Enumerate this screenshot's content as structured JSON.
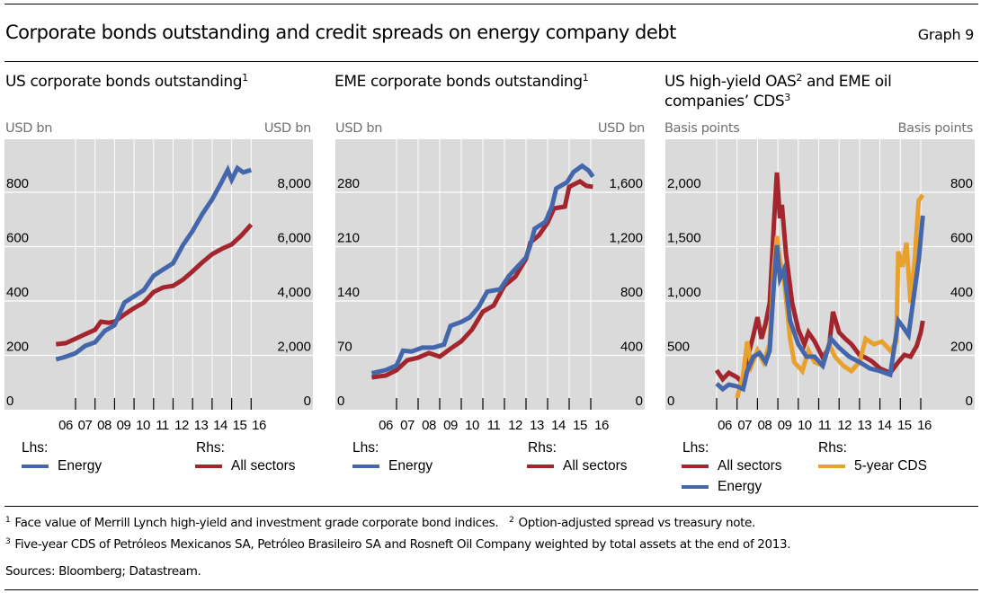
{
  "header": {
    "title": "Corporate bonds outstanding and credit spreads on energy company debt",
    "graph_number": "Graph 9"
  },
  "colors": {
    "energy": "#4466AA",
    "all_sectors": "#A3262F",
    "cds": "#E8A02E",
    "plot_bg": "#DADADA",
    "grid": "#FFFFFF"
  },
  "panels": [
    {
      "title": "US corporate bonds outstanding",
      "title_sup": "1",
      "unit_left": "USD bn",
      "unit_right": "USD bn",
      "legend": {
        "lhs_label": "Lhs:",
        "rhs_label": "Rhs:",
        "lhs_items": [
          "Energy"
        ],
        "rhs_items": [
          "All sectors"
        ]
      }
    },
    {
      "title": "EME corporate bonds outstanding",
      "title_sup": "1",
      "unit_left": "USD bn",
      "unit_right": "USD bn",
      "legend": {
        "lhs_label": "Lhs:",
        "rhs_label": "Rhs:",
        "lhs_items": [
          "Energy"
        ],
        "rhs_items": [
          "All sectors"
        ]
      }
    },
    {
      "title": "US high-yield OAS",
      "title_sup": "2",
      "title_cont": " and EME oil",
      "title_line2": "companies’ CDS",
      "title_line2_sup": "3",
      "unit_left": "Basis points",
      "unit_right": "Basis points",
      "legend": {
        "lhs_label": "Lhs:",
        "rhs_label": "Rhs:",
        "lhs_items": [
          "All sectors",
          "Energy"
        ],
        "rhs_items": [
          "5-year CDS"
        ]
      }
    }
  ],
  "footnotes": [
    {
      "mark": "1",
      "text": "Face value of Merrill Lynch high-yield and investment grade corporate bond indices."
    },
    {
      "mark": "2",
      "text": "Option-adjusted spread vs treasury note."
    },
    {
      "mark": "3",
      "text": "Five-year CDS of Petróleos Mexicanos SA, Petróleo Brasileiro SA and Rosneft Oil Company weighted by total assets at the end of 2013."
    }
  ],
  "sources": "Sources: Bloomberg; Datastream.",
  "chart_data": [
    {
      "type": "line",
      "title": "US corporate bonds outstanding",
      "xlabel": "",
      "x_tick_labels": [
        "06",
        "07",
        "08",
        "09",
        "10",
        "11",
        "12",
        "13",
        "14",
        "15",
        "16"
      ],
      "x_range": [
        2006.0,
        2016.0
      ],
      "ylabel_left": "USD bn",
      "ylabel_right": "USD bn",
      "yticks_left": [
        "0",
        "200",
        "400",
        "600",
        "800"
      ],
      "yticks_right": [
        "0",
        "2,000",
        "4,000",
        "6,000",
        "8,000"
      ],
      "ylim_left": [
        0,
        1000
      ],
      "ylim_right": [
        0,
        10000
      ],
      "grid": true,
      "legend_position": "bottom",
      "series": [
        {
          "name": "Energy",
          "axis": "lhs",
          "color_key": "energy",
          "x": [
            2006.0,
            2006.5,
            2007.0,
            2007.5,
            2008.0,
            2008.5,
            2009.0,
            2009.5,
            2010.0,
            2010.5,
            2011.0,
            2011.5,
            2012.0,
            2012.5,
            2013.0,
            2013.5,
            2014.0,
            2014.5,
            2014.8,
            2015.0,
            2015.3,
            2015.6,
            2016.0
          ],
          "values": [
            185,
            195,
            208,
            235,
            248,
            290,
            311,
            394,
            417,
            440,
            493,
            516,
            539,
            605,
            658,
            720,
            774,
            840,
            882,
            846,
            889,
            873,
            882
          ]
        },
        {
          "name": "All sectors",
          "axis": "rhs",
          "color_key": "all_sectors",
          "x": [
            2006.0,
            2006.5,
            2007.0,
            2007.5,
            2008.0,
            2008.3,
            2008.7,
            2009.0,
            2009.5,
            2010.0,
            2010.5,
            2011.0,
            2011.5,
            2012.0,
            2012.5,
            2013.0,
            2013.5,
            2014.0,
            2014.5,
            2015.0,
            2015.5,
            2016.0
          ],
          "values": [
            2410,
            2450,
            2610,
            2780,
            2940,
            3240,
            3200,
            3240,
            3500,
            3740,
            3940,
            4330,
            4500,
            4560,
            4780,
            5090,
            5420,
            5720,
            5920,
            6080,
            6410,
            6810
          ]
        }
      ]
    },
    {
      "type": "line",
      "title": "EME corporate bonds outstanding",
      "xlabel": "",
      "x_tick_labels": [
        "06",
        "07",
        "08",
        "09",
        "10",
        "11",
        "12",
        "13",
        "14",
        "15",
        "16"
      ],
      "x_range": [
        2005.85,
        2016.1
      ],
      "ylabel_left": "USD bn",
      "ylabel_right": "USD bn",
      "yticks_left": [
        "0",
        "70",
        "140",
        "210",
        "280"
      ],
      "yticks_right": [
        "0",
        "400",
        "800",
        "1,200",
        "1,600"
      ],
      "ylim_left": [
        0,
        350
      ],
      "ylim_right": [
        0,
        2000
      ],
      "grid": true,
      "legend_position": "bottom",
      "series": [
        {
          "name": "Energy",
          "axis": "lhs",
          "color_key": "energy",
          "x": [
            2005.85,
            2006.5,
            2007.0,
            2007.3,
            2007.7,
            2008.2,
            2008.7,
            2009.2,
            2009.5,
            2010.0,
            2010.4,
            2010.8,
            2011.2,
            2011.8,
            2012.2,
            2012.6,
            2013.0,
            2013.2,
            2013.4,
            2013.9,
            2014.2,
            2014.4,
            2014.9,
            2015.2,
            2015.6,
            2015.9,
            2016.1
          ],
          "values": [
            47,
            51,
            57,
            76,
            75,
            80,
            80,
            84,
            108,
            113,
            119,
            132,
            152,
            155,
            172,
            184,
            196,
            212,
            233,
            242,
            262,
            285,
            293,
            306,
            314,
            308,
            300
          ]
        },
        {
          "name": "All sectors",
          "axis": "rhs",
          "color_key": "all_sectors",
          "x": [
            2005.85,
            2006.5,
            2007.0,
            2007.5,
            2008.0,
            2008.5,
            2009.0,
            2009.5,
            2010.0,
            2010.5,
            2011.0,
            2011.5,
            2012.0,
            2012.5,
            2013.0,
            2013.2,
            2013.6,
            2014.0,
            2014.3,
            2014.8,
            2015.0,
            2015.5,
            2015.8,
            2016.1
          ],
          "values": [
            238,
            251,
            291,
            364,
            383,
            417,
            390,
            449,
            503,
            590,
            721,
            766,
            913,
            978,
            1110,
            1230,
            1284,
            1376,
            1481,
            1495,
            1640,
            1680,
            1647,
            1640
          ]
        }
      ]
    },
    {
      "type": "line",
      "title": "US high-yield OAS and EME oil companies' CDS",
      "xlabel": "",
      "x_tick_labels": [
        "06",
        "07",
        "08",
        "09",
        "10",
        "11",
        "12",
        "13",
        "14",
        "15",
        "16"
      ],
      "x_range": [
        2006.0,
        2016.1
      ],
      "ylabel_left": "Basis points",
      "ylabel_right": "Basis points",
      "yticks_left": [
        "0",
        "500",
        "1,000",
        "1,500",
        "2,000"
      ],
      "yticks_right": [
        "0",
        "200",
        "400",
        "600",
        "800"
      ],
      "ylim_left": [
        0,
        2500
      ],
      "ylim_right": [
        0,
        1000
      ],
      "grid": true,
      "legend_position": "bottom",
      "series": [
        {
          "name": "All sectors",
          "axis": "lhs",
          "color_key": "all_sectors",
          "x": [
            2006.0,
            2006.3,
            2006.6,
            2007.0,
            2007.3,
            2007.5,
            2007.8,
            2008.0,
            2008.2,
            2008.4,
            2008.6,
            2008.8,
            2008.95,
            2009.1,
            2009.2,
            2009.4,
            2009.7,
            2010.0,
            2010.3,
            2010.5,
            2010.8,
            2011.2,
            2011.5,
            2011.7,
            2012.0,
            2012.3,
            2012.6,
            2013.0,
            2013.3,
            2013.6,
            2014.0,
            2014.5,
            2014.9,
            2015.2,
            2015.5,
            2015.8,
            2016.0,
            2016.1
          ],
          "values": [
            364,
            281,
            339,
            298,
            240,
            463,
            686,
            851,
            653,
            793,
            983,
            1702,
            2182,
            1760,
            1884,
            1430,
            983,
            736,
            603,
            711,
            628,
            479,
            570,
            901,
            711,
            653,
            603,
            504,
            479,
            446,
            380,
            339,
            438,
            504,
            488,
            587,
            711,
            818
          ]
        },
        {
          "name": "Energy",
          "axis": "lhs",
          "color_key": "energy",
          "x": [
            2006.0,
            2006.3,
            2006.6,
            2007.0,
            2007.3,
            2007.5,
            2007.8,
            2008.1,
            2008.4,
            2008.6,
            2008.8,
            2008.95,
            2009.1,
            2009.3,
            2009.6,
            2010.0,
            2010.4,
            2010.8,
            2011.2,
            2011.6,
            2012.0,
            2012.5,
            2013.0,
            2013.5,
            2014.0,
            2014.5,
            2014.9,
            2015.1,
            2015.4,
            2015.7,
            2015.9,
            2016.1
          ],
          "values": [
            240,
            190,
            231,
            215,
            190,
            355,
            488,
            521,
            438,
            545,
            1149,
            1512,
            1207,
            1289,
            818,
            603,
            488,
            488,
            405,
            653,
            570,
            488,
            438,
            380,
            355,
            322,
            818,
            769,
            686,
            1099,
            1372,
            1785
          ]
        },
        {
          "name": "5-year CDS",
          "axis": "rhs",
          "color_key": "cds",
          "x": [
            2007.0,
            2007.3,
            2007.5,
            2007.7,
            2008.0,
            2008.3,
            2008.6,
            2008.8,
            2008.95,
            2009.1,
            2009.3,
            2009.6,
            2009.8,
            2010.2,
            2010.5,
            2010.8,
            2011.2,
            2011.5,
            2011.8,
            2012.2,
            2012.6,
            2013.0,
            2013.3,
            2013.7,
            2014.1,
            2014.5,
            2014.8,
            2014.9,
            2015.1,
            2015.3,
            2015.5,
            2015.7,
            2015.9,
            2016.1
          ],
          "values": [
            43,
            129,
            251,
            162,
            218,
            175,
            241,
            516,
            638,
            549,
            483,
            261,
            175,
            142,
            218,
            175,
            162,
            241,
            195,
            162,
            142,
            175,
            261,
            241,
            251,
            218,
            251,
            582,
            526,
            615,
            393,
            549,
            770,
            790
          ]
        }
      ]
    }
  ]
}
